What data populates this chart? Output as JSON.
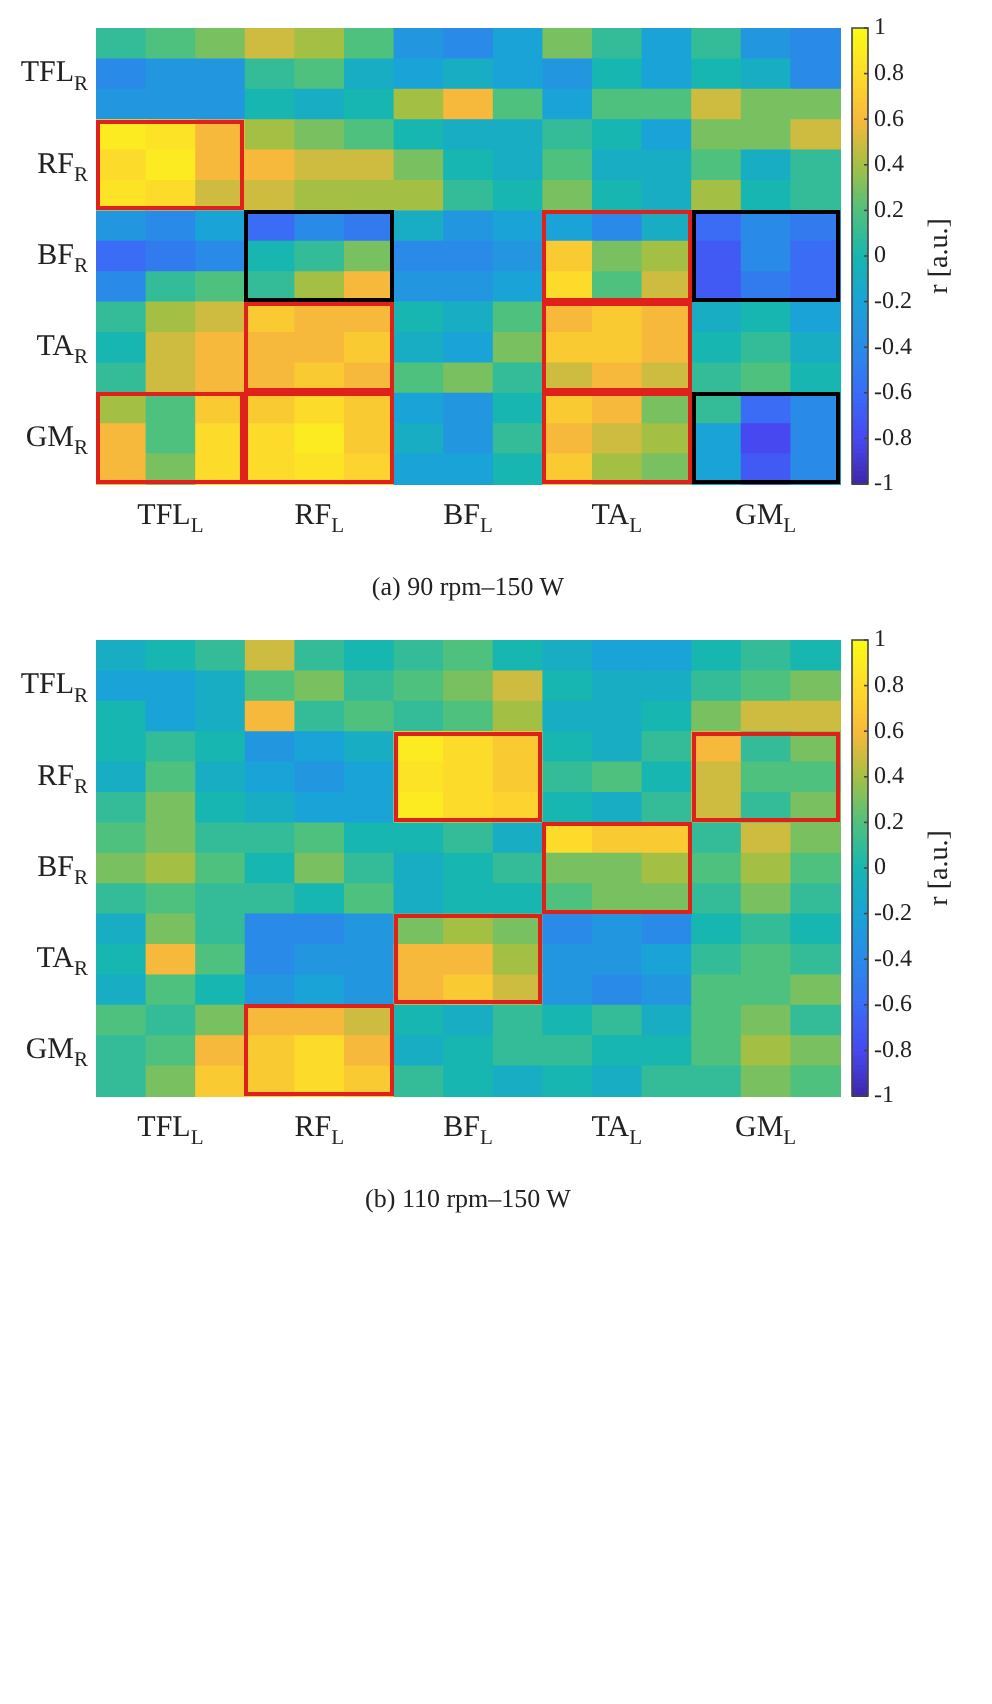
{
  "chart_data": [
    {
      "type": "heatmap",
      "annotations": [
        "(a) 90 rpm–150 W"
      ],
      "clabel": "r [a.u.]",
      "clim": [
        -1,
        1
      ],
      "cticks": [
        -1,
        -0.8,
        -0.6,
        -0.4,
        -0.2,
        0,
        0.2,
        0.4,
        0.6,
        0.8,
        1
      ],
      "categories": [
        null,
        "TFL$_{L}$",
        null,
        null,
        "RF$_{L}$",
        null,
        null,
        "BF$_{L}$",
        null,
        null,
        "TA$_{L}$",
        null,
        null,
        "GM$_{L}$",
        null
      ],
      "y_categories": [
        null,
        "TFL$_{R}$",
        null,
        null,
        "RF$_{R}$",
        null,
        null,
        "BF$_{R}$",
        null,
        null,
        "TA$_{R}$",
        null,
        null,
        "GM$_{R}$",
        null
      ],
      "cells": [
        [
          0.1,
          0.2,
          0.3,
          0.5,
          0.4,
          0.2,
          -0.3,
          -0.4,
          -0.2,
          0.3,
          0.1,
          -0.2,
          0.1,
          -0.3,
          -0.4
        ],
        [
          -0.4,
          -0.3,
          -0.3,
          0.1,
          0.2,
          -0.1,
          -0.2,
          -0.1,
          -0.2,
          -0.3,
          0.0,
          -0.2,
          0.0,
          -0.1,
          -0.4
        ],
        [
          -0.3,
          -0.3,
          -0.3,
          0.0,
          -0.1,
          0.0,
          0.4,
          0.6,
          0.2,
          -0.2,
          0.2,
          0.2,
          0.5,
          0.3,
          0.3
        ],
        [
          0.9,
          0.85,
          0.6,
          0.4,
          0.3,
          0.2,
          0.0,
          -0.1,
          -0.1,
          0.1,
          0.0,
          -0.2,
          0.3,
          0.3,
          0.5
        ],
        [
          0.8,
          0.9,
          0.6,
          0.6,
          0.5,
          0.5,
          0.3,
          0.0,
          -0.1,
          0.2,
          -0.1,
          -0.1,
          0.2,
          -0.1,
          0.1
        ],
        [
          0.85,
          0.8,
          0.5,
          0.5,
          0.4,
          0.4,
          0.4,
          0.1,
          0.0,
          0.3,
          0.0,
          -0.1,
          0.4,
          0.0,
          0.1
        ],
        [
          -0.3,
          -0.4,
          -0.2,
          -0.6,
          -0.4,
          -0.5,
          -0.1,
          -0.3,
          -0.2,
          -0.2,
          -0.4,
          -0.1,
          -0.6,
          -0.4,
          -0.5
        ],
        [
          -0.6,
          -0.5,
          -0.4,
          0.0,
          0.1,
          0.3,
          -0.4,
          -0.4,
          -0.3,
          0.7,
          0.3,
          0.4,
          -0.7,
          -0.4,
          -0.6
        ],
        [
          -0.4,
          0.1,
          0.2,
          0.1,
          0.4,
          0.6,
          -0.3,
          -0.3,
          -0.2,
          0.8,
          0.2,
          0.5,
          -0.7,
          -0.5,
          -0.6
        ],
        [
          0.1,
          0.4,
          0.5,
          0.7,
          0.6,
          0.6,
          0.0,
          -0.1,
          0.2,
          0.6,
          0.7,
          0.6,
          -0.1,
          0.0,
          -0.2
        ],
        [
          0.0,
          0.5,
          0.6,
          0.6,
          0.6,
          0.7,
          -0.1,
          -0.2,
          0.3,
          0.7,
          0.7,
          0.6,
          0.0,
          0.1,
          -0.1
        ],
        [
          0.1,
          0.5,
          0.6,
          0.6,
          0.7,
          0.6,
          0.2,
          0.3,
          0.1,
          0.5,
          0.6,
          0.5,
          0.1,
          0.2,
          0.0
        ],
        [
          0.4,
          0.2,
          0.7,
          0.7,
          0.8,
          0.7,
          -0.2,
          -0.3,
          0.0,
          0.7,
          0.6,
          0.3,
          0.1,
          -0.6,
          -0.4
        ],
        [
          0.6,
          0.2,
          0.8,
          0.8,
          0.9,
          0.7,
          -0.1,
          -0.3,
          0.1,
          0.6,
          0.5,
          0.4,
          -0.2,
          -0.8,
          -0.4
        ],
        [
          0.6,
          0.3,
          0.8,
          0.8,
          0.85,
          0.75,
          -0.2,
          -0.2,
          0.0,
          0.7,
          0.4,
          0.3,
          -0.2,
          -0.7,
          -0.4
        ]
      ]
    },
    {
      "type": "heatmap",
      "annotations": [
        "(b) 110 rpm–150 W"
      ],
      "clabel": "r [a.u.]",
      "clim": [
        -1,
        1
      ],
      "cticks": [
        -1,
        -0.8,
        -0.6,
        -0.4,
        -0.2,
        0,
        0.2,
        0.4,
        0.6,
        0.8,
        1
      ],
      "categories": [
        null,
        "TFL$_{L}$",
        null,
        null,
        "RF$_{L}$",
        null,
        null,
        "BF$_{L}$",
        null,
        null,
        "TA$_{L}$",
        null,
        null,
        "GM$_{L}$",
        null
      ],
      "y_categories": [
        null,
        "TFL$_{R}$",
        null,
        null,
        "RF$_{R}$",
        null,
        null,
        "BF$_{R}$",
        null,
        null,
        "TA$_{R}$",
        null,
        null,
        "GM$_{R}$",
        null
      ],
      "cells": [
        [
          -0.1,
          0.0,
          0.1,
          0.5,
          0.1,
          0.0,
          0.1,
          0.2,
          0.0,
          -0.1,
          -0.2,
          -0.2,
          0.0,
          0.1,
          0.0
        ],
        [
          -0.2,
          -0.2,
          -0.1,
          0.2,
          0.3,
          0.1,
          0.2,
          0.3,
          0.5,
          0.0,
          -0.1,
          -0.1,
          0.1,
          0.2,
          0.3
        ],
        [
          0.0,
          -0.2,
          -0.1,
          0.6,
          0.1,
          0.2,
          0.1,
          0.2,
          0.4,
          -0.1,
          -0.1,
          0.0,
          0.3,
          0.5,
          0.5
        ],
        [
          0.0,
          0.1,
          0.0,
          -0.3,
          -0.2,
          -0.1,
          0.9,
          0.8,
          0.7,
          0.0,
          -0.1,
          0.1,
          0.6,
          0.1,
          0.3
        ],
        [
          -0.1,
          0.2,
          -0.1,
          -0.2,
          -0.3,
          -0.2,
          0.85,
          0.8,
          0.7,
          0.1,
          0.2,
          0.0,
          0.5,
          0.2,
          0.2
        ],
        [
          0.1,
          0.3,
          0.0,
          -0.1,
          -0.2,
          -0.2,
          0.9,
          0.8,
          0.75,
          0.0,
          -0.1,
          0.1,
          0.5,
          0.1,
          0.3
        ],
        [
          0.2,
          0.3,
          0.1,
          0.1,
          0.2,
          0.0,
          0.0,
          0.1,
          -0.1,
          0.8,
          0.7,
          0.7,
          0.1,
          0.5,
          0.3
        ],
        [
          0.3,
          0.4,
          0.2,
          0.0,
          0.3,
          0.1,
          -0.1,
          0.0,
          0.1,
          0.3,
          0.3,
          0.4,
          0.2,
          0.4,
          0.2
        ],
        [
          0.1,
          0.2,
          0.1,
          0.1,
          0.0,
          0.2,
          -0.1,
          0.0,
          0.0,
          0.2,
          0.3,
          0.3,
          0.1,
          0.3,
          0.1
        ],
        [
          -0.1,
          0.3,
          0.1,
          -0.4,
          -0.4,
          -0.3,
          0.3,
          0.4,
          0.3,
          -0.4,
          -0.3,
          -0.4,
          0.0,
          0.1,
          0.0
        ],
        [
          0.0,
          0.6,
          0.2,
          -0.4,
          -0.3,
          -0.3,
          0.6,
          0.6,
          0.4,
          -0.3,
          -0.3,
          -0.2,
          0.1,
          0.2,
          0.1
        ],
        [
          -0.1,
          0.2,
          0.0,
          -0.3,
          -0.2,
          -0.3,
          0.6,
          0.7,
          0.5,
          -0.3,
          -0.4,
          -0.3,
          0.2,
          0.2,
          0.3
        ],
        [
          0.2,
          0.1,
          0.3,
          0.6,
          0.6,
          0.5,
          0.0,
          -0.1,
          0.1,
          0.0,
          0.1,
          -0.1,
          0.2,
          0.3,
          0.1
        ],
        [
          0.1,
          0.2,
          0.6,
          0.7,
          0.8,
          0.6,
          -0.1,
          0.0,
          0.1,
          0.1,
          0.0,
          0.0,
          0.2,
          0.4,
          0.3
        ],
        [
          0.1,
          0.3,
          0.7,
          0.7,
          0.8,
          0.7,
          0.1,
          0.0,
          -0.1,
          0.0,
          -0.1,
          0.1,
          0.1,
          0.3,
          0.2
        ]
      ]
    }
  ]
}
